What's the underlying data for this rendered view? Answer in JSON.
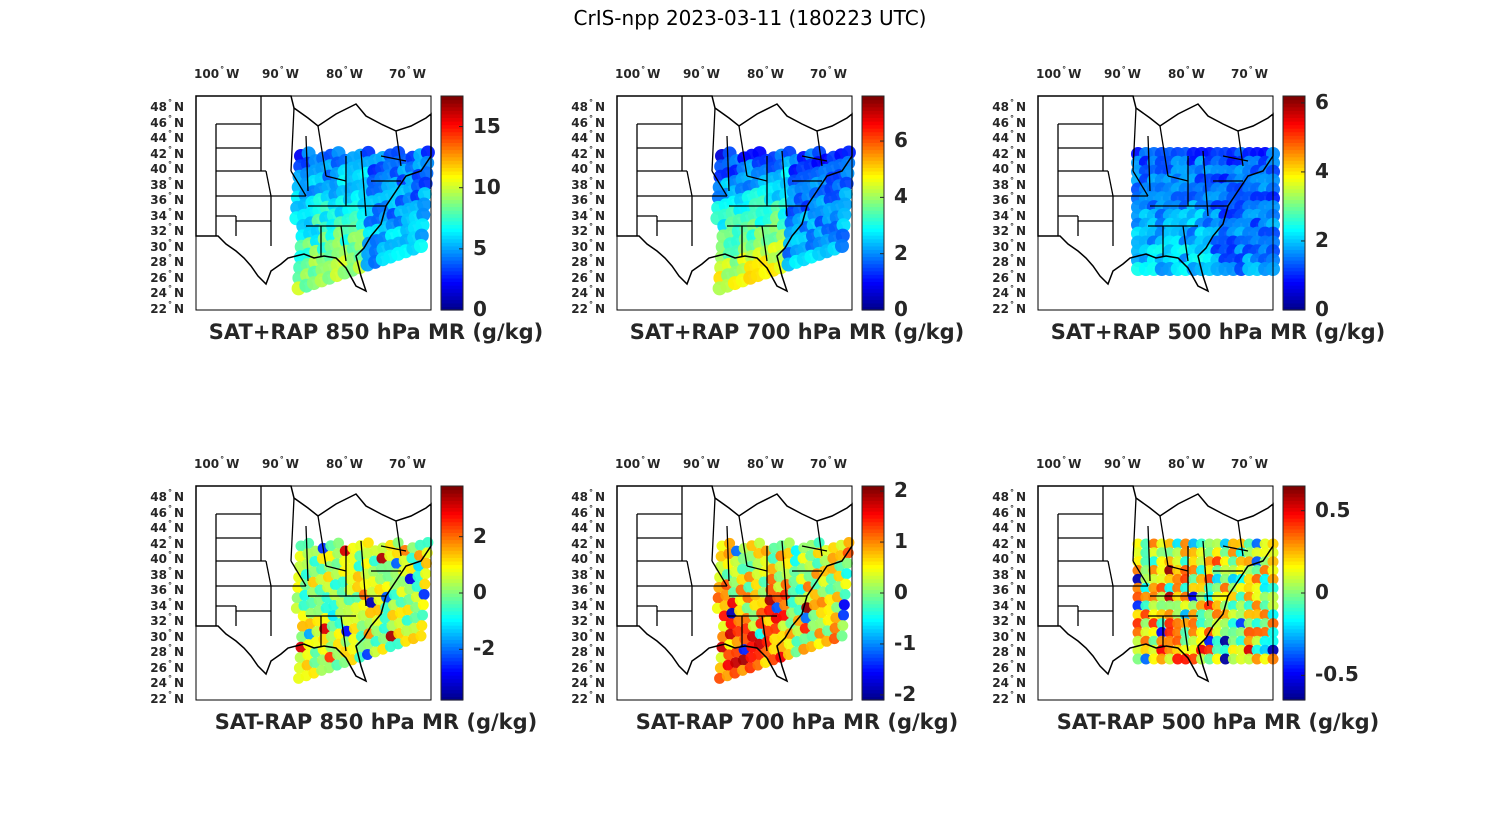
{
  "figure": {
    "title": "CrIS-npp 2023-03-11 (180223 UTC)"
  },
  "colormap": [
    "#00008f",
    "#0000ff",
    "#0080ff",
    "#00ffff",
    "#80ff80",
    "#ffff00",
    "#ff8000",
    "#ff0000",
    "#800000"
  ],
  "map_fill": "#ffffff",
  "border_color": "#000000",
  "chart_data": [
    {
      "type": "heatmap",
      "id": "sat-rap-850",
      "title": "SAT+RAP 850 hPa MR (g/kg)",
      "xlabel": "",
      "ylabel": "",
      "lon_ticks": [
        "100° W",
        "90° W",
        "80° W",
        "70° W"
      ],
      "lat_ticks": [
        "48° N",
        "46° N",
        "44° N",
        "42° N",
        "40° N",
        "38° N",
        "36° N",
        "34° N",
        "32° N",
        "30° N",
        "28° N",
        "26° N",
        "24° N",
        "22° N"
      ],
      "colorbar": {
        "range": [
          0,
          17.5
        ],
        "ticks": [
          0,
          5,
          10,
          15
        ],
        "labels": [
          "0",
          "5",
          "10",
          "15"
        ]
      },
      "swath_mean": 3.5,
      "swath_spread": 1.5,
      "south_boost": 6
    },
    {
      "type": "heatmap",
      "id": "sat-rap-700",
      "title": "SAT+RAP 700 hPa MR (g/kg)",
      "xlabel": "",
      "ylabel": "",
      "lon_ticks": [
        "100° W",
        "90° W",
        "80° W",
        "70° W"
      ],
      "lat_ticks": [
        "48° N",
        "46° N",
        "44° N",
        "42° N",
        "40° N",
        "38° N",
        "36° N",
        "34° N",
        "32° N",
        "30° N",
        "28° N",
        "26° N",
        "24° N",
        "22° N"
      ],
      "colorbar": {
        "range": [
          0,
          7.6
        ],
        "ticks": [
          0,
          2,
          4,
          6
        ],
        "labels": [
          "0",
          "2",
          "4",
          "6"
        ]
      },
      "swath_mean": 1.2,
      "swath_spread": 0.6,
      "south_boost": 3.5
    },
    {
      "type": "heatmap",
      "id": "sat-rap-500",
      "title": "SAT+RAP 500 hPa MR (g/kg)",
      "xlabel": "",
      "ylabel": "",
      "lon_ticks": [
        "100° W",
        "90° W",
        "80° W",
        "70° W"
      ],
      "lat_ticks": [
        "48° N",
        "46° N",
        "44° N",
        "42° N",
        "40° N",
        "38° N",
        "36° N",
        "34° N",
        "32° N",
        "30° N",
        "28° N",
        "26° N",
        "24° N",
        "22° N"
      ],
      "colorbar": {
        "range": [
          0,
          6.2
        ],
        "ticks": [
          0,
          2,
          4,
          6
        ],
        "labels": [
          "0",
          "2",
          "4",
          "6"
        ]
      },
      "swath_mean": 1.3,
      "swath_spread": 0.5,
      "south_boost": 0.8
    },
    {
      "type": "heatmap",
      "id": "sat-minus-rap-850",
      "title": "SAT-RAP 850 hPa MR (g/kg)",
      "xlabel": "",
      "ylabel": "",
      "lon_ticks": [
        "100° W",
        "90° W",
        "80° W",
        "70° W"
      ],
      "lat_ticks": [
        "48° N",
        "46° N",
        "44° N",
        "42° N",
        "40° N",
        "38° N",
        "36° N",
        "34° N",
        "32° N",
        "30° N",
        "28° N",
        "26° N",
        "24° N",
        "22° N"
      ],
      "colorbar": {
        "range": [
          -3.8,
          3.8
        ],
        "ticks": [
          -2,
          0,
          2
        ],
        "labels": [
          "-2",
          "0",
          "2"
        ]
      },
      "swath_mean": 0.4,
      "swath_spread": 1.1,
      "south_boost": 0
    },
    {
      "type": "heatmap",
      "id": "sat-minus-rap-700",
      "title": "SAT-RAP 700 hPa MR (g/kg)",
      "xlabel": "",
      "ylabel": "",
      "lon_ticks": [
        "100° W",
        "90° W",
        "80° W",
        "70° W"
      ],
      "lat_ticks": [
        "48° N",
        "46° N",
        "44° N",
        "42° N",
        "40° N",
        "38° N",
        "36° N",
        "34° N",
        "32° N",
        "30° N",
        "28° N",
        "26° N",
        "24° N",
        "22° N"
      ],
      "colorbar": {
        "range": [
          -2.1,
          2.1
        ],
        "ticks": [
          -2,
          -1,
          0,
          1,
          2
        ],
        "labels": [
          "-2",
          "-1",
          "0",
          "1",
          "2"
        ]
      },
      "swath_mean": 0.1,
      "swath_spread": 0.8,
      "south_boost": 1.2
    },
    {
      "type": "heatmap",
      "id": "sat-minus-rap-500",
      "title": "SAT-RAP 500 hPa MR (g/kg)",
      "xlabel": "",
      "ylabel": "",
      "lon_ticks": [
        "100° W",
        "90° W",
        "80° W",
        "70° W"
      ],
      "lat_ticks": [
        "48° N",
        "46° N",
        "44° N",
        "42° N",
        "40° N",
        "38° N",
        "36° N",
        "34° N",
        "32° N",
        "30° N",
        "28° N",
        "26° N",
        "24° N",
        "22° N"
      ],
      "colorbar": {
        "range": [
          -0.65,
          0.65
        ],
        "ticks": [
          -0.5,
          0,
          0.5
        ],
        "labels": [
          "-0.5",
          "0",
          "0.5"
        ]
      },
      "swath_mean": 0.05,
      "swath_spread": 0.3,
      "south_boost": 0.2
    }
  ]
}
